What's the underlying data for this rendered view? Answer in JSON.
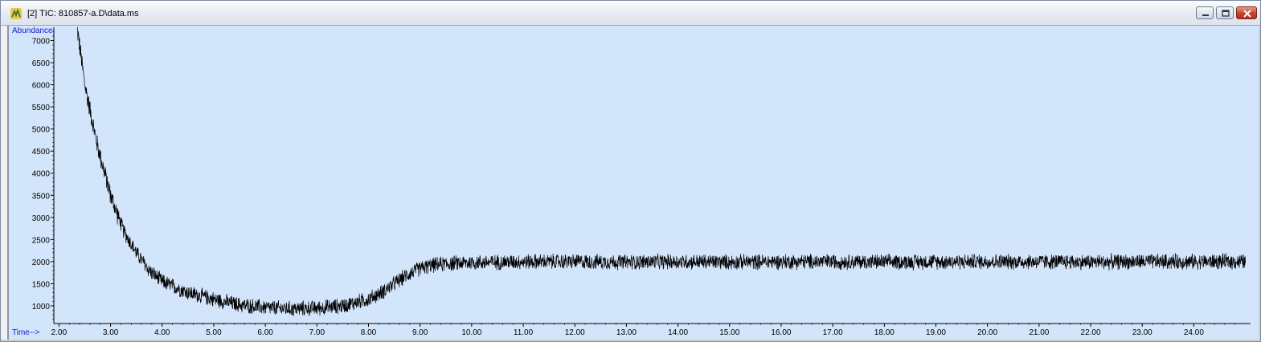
{
  "window": {
    "title": "[2] TIC: 810857-a.D\\data.ms",
    "icons": [
      "app-icon",
      "minimize-icon",
      "maximize-icon",
      "close-icon"
    ]
  },
  "chart_data": {
    "type": "line",
    "ylabel": "Abundance",
    "xlabel": "Time-->",
    "xlim": [
      1.9,
      25.1
    ],
    "ylim": [
      600,
      7300
    ],
    "xticks": [
      "2.00",
      "3.00",
      "4.00",
      "5.00",
      "6.00",
      "7.00",
      "8.00",
      "9.00",
      "10.00",
      "11.00",
      "12.00",
      "13.00",
      "14.00",
      "15.00",
      "16.00",
      "17.00",
      "18.00",
      "19.00",
      "20.00",
      "21.00",
      "22.00",
      "23.00",
      "24.00"
    ],
    "yticks": [
      "1000",
      "1500",
      "2000",
      "2500",
      "3000",
      "3500",
      "4000",
      "4500",
      "5000",
      "5500",
      "6000",
      "6500",
      "7000"
    ],
    "grid": false,
    "series": [
      {
        "color": "#000000",
        "x": [
          2.35,
          2.5,
          2.75,
          3.0,
          3.25,
          3.5,
          3.75,
          4.0,
          4.5,
          5.0,
          5.5,
          6.0,
          6.5,
          7.0,
          7.5,
          8.0,
          8.25,
          8.5,
          8.75,
          9.0,
          9.25,
          9.5,
          10.0,
          11.0,
          12.0,
          13.0,
          14.0,
          15.0,
          16.0,
          17.0,
          18.0,
          19.0,
          20.0,
          21.0,
          22.0,
          23.0,
          24.0,
          25.0
        ],
        "y": [
          7300,
          6000,
          4600,
          3500,
          2700,
          2200,
          1800,
          1550,
          1300,
          1150,
          1020,
          960,
          930,
          950,
          1000,
          1150,
          1300,
          1500,
          1700,
          1850,
          1920,
          1950,
          1980,
          2000,
          2000,
          1990,
          2000,
          1990,
          2000,
          2000,
          1990,
          2000,
          2000,
          2000,
          1990,
          2000,
          2000,
          2000
        ],
        "noise_amplitude": 200
      }
    ]
  }
}
